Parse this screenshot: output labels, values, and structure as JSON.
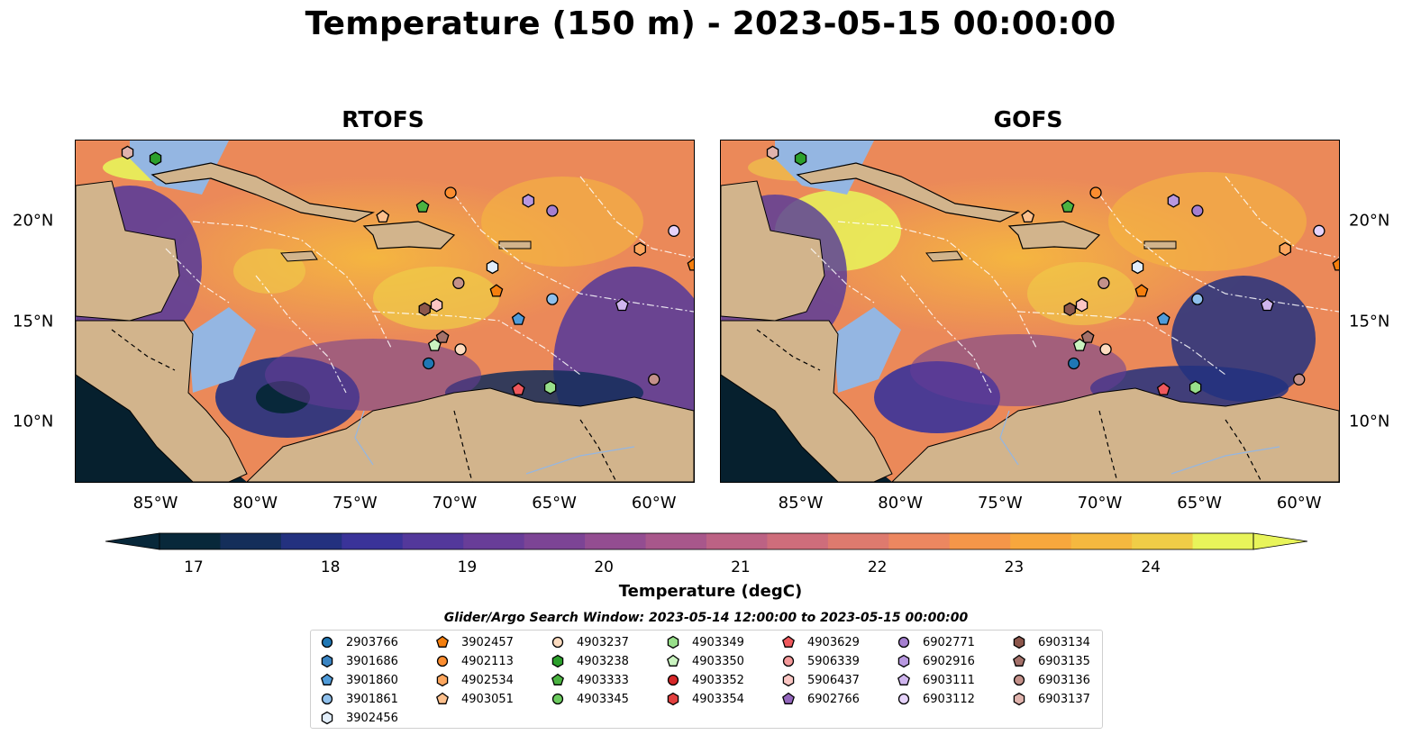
{
  "title": "Temperature (150 m) - 2023-05-15 00:00:00",
  "panels": [
    {
      "id": "rtofs",
      "title": "RTOFS"
    },
    {
      "id": "gofs",
      "title": "GOFS"
    }
  ],
  "map": {
    "lon_range": [
      -89,
      -58
    ],
    "lat_range": [
      7,
      24
    ],
    "lon_ticks": [
      "85°W",
      "80°W",
      "75°W",
      "70°W",
      "65°W",
      "60°W"
    ],
    "lat_ticks": [
      "20°N",
      "15°N",
      "10°N"
    ],
    "colors": {
      "land": "#d2b48c",
      "shelf": "#94b6e2",
      "deep_land_shadow": "#06202e"
    }
  },
  "colorbar": {
    "label": "Temperature (degC)",
    "range": [
      16.75,
      24.75
    ],
    "ticks": [
      "17",
      "18",
      "19",
      "20",
      "21",
      "22",
      "23",
      "24"
    ],
    "colors": [
      "#08283a",
      "#142e5a",
      "#23317f",
      "#3a3399",
      "#53389b",
      "#683d98",
      "#7c4495",
      "#934d91",
      "#a8578b",
      "#bc6284",
      "#ce6d7b",
      "#de7a6e",
      "#ec8760",
      "#f59649",
      "#f7a73d",
      "#f5b83f",
      "#f0cd47",
      "#e8f45a"
    ]
  },
  "legend": {
    "title": "Glider/Argo Search Window: 2023-05-14 12:00:00 to 2023-05-15 00:00:00",
    "items": [
      {
        "id": "2903766",
        "shape": "circle",
        "color": "#1f77b4"
      },
      {
        "id": "3901686",
        "shape": "hexagon",
        "color": "#3a84c2"
      },
      {
        "id": "3901860",
        "shape": "pentagon",
        "color": "#4f9bd9"
      },
      {
        "id": "3901861",
        "shape": "circle",
        "color": "#8fc0ec"
      },
      {
        "id": "3902456",
        "shape": "hexagon",
        "color": "#e2eefa"
      },
      {
        "id": "3902457",
        "shape": "pentagon",
        "color": "#f57f0e"
      },
      {
        "id": "4902113",
        "shape": "circle",
        "color": "#fb8d30"
      },
      {
        "id": "4902534",
        "shape": "hexagon",
        "color": "#fca65e"
      },
      {
        "id": "4903051",
        "shape": "pentagon",
        "color": "#fdc08d"
      },
      {
        "id": "4903237",
        "shape": "circle",
        "color": "#fddcc0"
      },
      {
        "id": "4903238",
        "shape": "hexagon",
        "color": "#2ca02c"
      },
      {
        "id": "4903333",
        "shape": "pentagon",
        "color": "#4bb341"
      },
      {
        "id": "4903345",
        "shape": "circle",
        "color": "#6ccb5f"
      },
      {
        "id": "4903349",
        "shape": "hexagon",
        "color": "#98df8a"
      },
      {
        "id": "4903350",
        "shape": "pentagon",
        "color": "#caf3c0"
      },
      {
        "id": "4903352",
        "shape": "circle",
        "color": "#d62728"
      },
      {
        "id": "4903354",
        "shape": "hexagon",
        "color": "#e2403f"
      },
      {
        "id": "4903629",
        "shape": "pentagon",
        "color": "#f0585c"
      },
      {
        "id": "5906339",
        "shape": "circle",
        "color": "#f4999a"
      },
      {
        "id": "5906437",
        "shape": "hexagon",
        "color": "#fbc6c3"
      },
      {
        "id": "6902766",
        "shape": "pentagon",
        "color": "#9467bd"
      },
      {
        "id": "6902771",
        "shape": "circle",
        "color": "#a57fd0"
      },
      {
        "id": "6902916",
        "shape": "hexagon",
        "color": "#b898e0"
      },
      {
        "id": "6903111",
        "shape": "pentagon",
        "color": "#cfb5ee"
      },
      {
        "id": "6903112",
        "shape": "circle",
        "color": "#e6d3fa"
      },
      {
        "id": "6903134",
        "shape": "hexagon",
        "color": "#8c564b"
      },
      {
        "id": "6903135",
        "shape": "pentagon",
        "color": "#a4716a"
      },
      {
        "id": "6903136",
        "shape": "circle",
        "color": "#c4918a"
      },
      {
        "id": "6903137",
        "shape": "hexagon",
        "color": "#e0b3ad"
      }
    ]
  },
  "floats": [
    {
      "lon": -86.4,
      "lat": 23.4,
      "id": "6903137"
    },
    {
      "lon": -85.0,
      "lat": 23.1,
      "id": "4903238"
    },
    {
      "lon": -73.6,
      "lat": 20.2,
      "id": "4903051"
    },
    {
      "lon": -71.6,
      "lat": 20.7,
      "id": "4903333"
    },
    {
      "lon": -70.2,
      "lat": 21.4,
      "id": "4902113"
    },
    {
      "lon": -66.3,
      "lat": 21.0,
      "id": "6902916"
    },
    {
      "lon": -65.1,
      "lat": 20.5,
      "id": "6902771"
    },
    {
      "lon": -59.0,
      "lat": 19.5,
      "id": "6903112"
    },
    {
      "lon": -60.7,
      "lat": 18.6,
      "id": "4902534"
    },
    {
      "lon": -68.1,
      "lat": 17.7,
      "id": "3902456"
    },
    {
      "lon": -58.0,
      "lat": 17.8,
      "id": "3902457"
    },
    {
      "lon": -69.8,
      "lat": 16.9,
      "id": "6903136"
    },
    {
      "lon": -67.9,
      "lat": 16.5,
      "id": "3902457"
    },
    {
      "lon": -65.1,
      "lat": 16.1,
      "id": "3901861"
    },
    {
      "lon": -71.5,
      "lat": 15.6,
      "id": "6903134"
    },
    {
      "lon": -70.9,
      "lat": 15.8,
      "id": "5906437"
    },
    {
      "lon": -61.6,
      "lat": 15.8,
      "id": "6903111"
    },
    {
      "lon": -66.8,
      "lat": 15.1,
      "id": "3901860"
    },
    {
      "lon": -70.6,
      "lat": 14.2,
      "id": "6903135"
    },
    {
      "lon": -71.0,
      "lat": 13.8,
      "id": "4903350"
    },
    {
      "lon": -69.7,
      "lat": 13.6,
      "id": "4903237"
    },
    {
      "lon": -71.3,
      "lat": 12.9,
      "id": "2903766"
    },
    {
      "lon": -60.0,
      "lat": 12.1,
      "id": "6903136"
    },
    {
      "lon": -66.8,
      "lat": 11.6,
      "id": "4903629"
    },
    {
      "lon": -65.2,
      "lat": 11.7,
      "id": "4903349"
    }
  ]
}
